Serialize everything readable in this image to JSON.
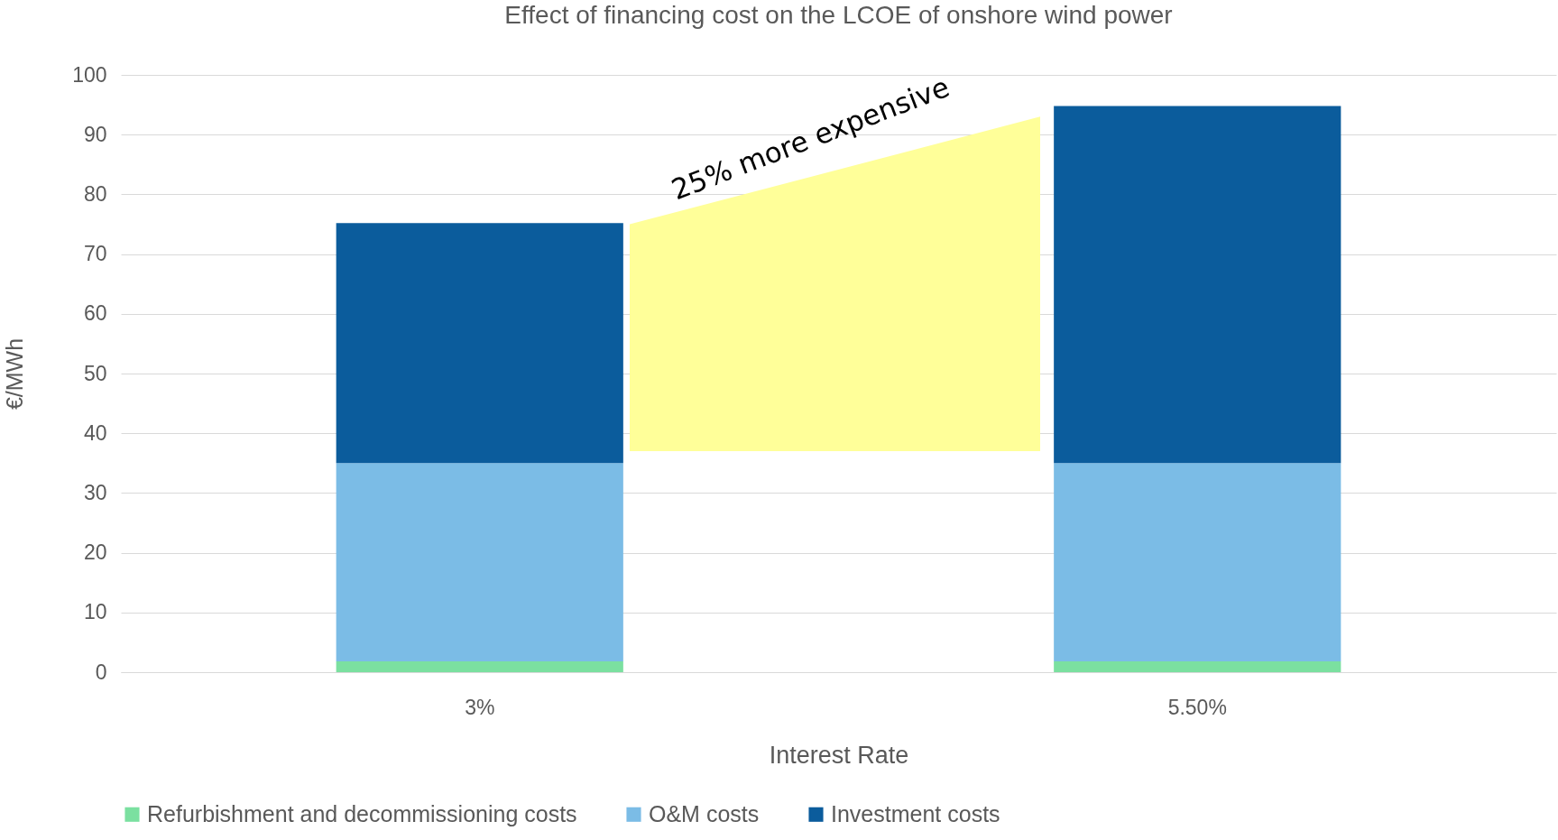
{
  "chart_data": {
    "type": "bar",
    "title": "Effect of financing cost on the LCOE of onshore wind power",
    "xlabel": "Interest Rate",
    "ylabel": "€/MWh",
    "categories": [
      "3%",
      "5.50%"
    ],
    "stacked": true,
    "series": [
      {
        "name": "Refurbishment and decommissioning costs",
        "color": "#7be0a0",
        "values": [
          1.8,
          1.8
        ]
      },
      {
        "name": "O&M costs",
        "color": "#7bbce6",
        "values": [
          33.2,
          33.2
        ]
      },
      {
        "name": "Investment costs",
        "color": "#0b5c9c",
        "values": [
          40.2,
          59.8
        ]
      }
    ],
    "ylim": [
      0,
      100
    ],
    "yticks": [
      0,
      10,
      20,
      30,
      40,
      50,
      60,
      70,
      80,
      90,
      100
    ],
    "grid": "y",
    "legend": "bottom",
    "annotations": [
      "25% more expensive"
    ]
  }
}
